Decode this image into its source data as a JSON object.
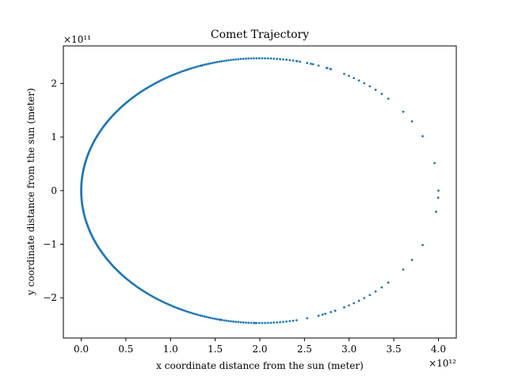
{
  "chart_data": {
    "type": "scatter",
    "title": "Comet Trajectory",
    "xlabel": "x coordinate distance from the sun (meter)",
    "ylabel": "y coordinate distance from the sun (meter)",
    "x_scale_label": "×10¹²",
    "y_scale_label": "×10¹¹",
    "x_scale_exp": 12,
    "y_scale_exp": 11,
    "xlim": [
      -0.2,
      4.2
    ],
    "ylim": [
      -2.75,
      2.7
    ],
    "x_ticks": [
      0.0,
      0.5,
      1.0,
      1.5,
      2.0,
      2.5,
      3.0,
      3.5,
      4.0
    ],
    "x_tick_labels": [
      "0.0",
      "0.5",
      "1.0",
      "1.5",
      "2.0",
      "2.5",
      "3.0",
      "3.5",
      "4.0"
    ],
    "y_ticks": [
      -2,
      -1,
      0,
      1,
      2
    ],
    "y_tick_labels": [
      "−2",
      "−1",
      "0",
      "1",
      "2"
    ],
    "grid": false,
    "marker_color": "#1f77b4",
    "orbit": {
      "center_x": 2.0,
      "semi_major_x": 2.0,
      "semi_minor_y": 2.47,
      "sun_at_x": 0.0,
      "period_samples": 400
    }
  }
}
